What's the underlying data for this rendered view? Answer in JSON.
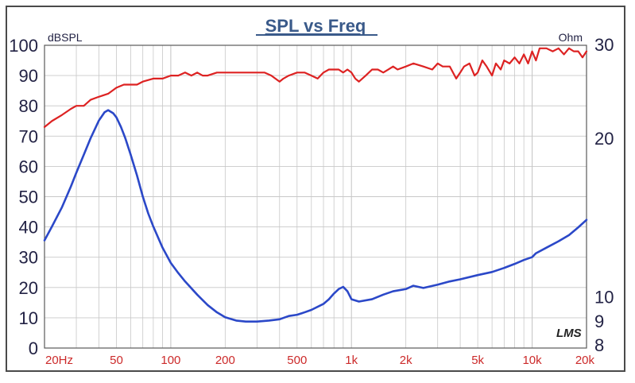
{
  "chart_data": {
    "type": "line",
    "title": "SPL vs Freq",
    "left_axis_label": "dBSPL",
    "right_axis_label": "Ohm",
    "watermark": "LMS",
    "xscale": "log",
    "xlim": [
      20,
      20000
    ],
    "ylim": [
      0,
      100
    ],
    "y2scale": "log",
    "y2lim": [
      8,
      30
    ],
    "grid": true,
    "colors": {
      "spl": "#dd2222",
      "impedance": "#2b48c8",
      "frame": "#5a5a5a",
      "grid": "#c8c8c8",
      "x_ticks": "#cc2a2a",
      "y_ticks": "#222244",
      "title": "#3a5a8a"
    },
    "x_tick_values": [
      20,
      50,
      100,
      200,
      500,
      1000,
      2000,
      5000,
      10000,
      20000
    ],
    "x_tick_labels": [
      "20Hz",
      "50",
      "100",
      "200",
      "500",
      "1k",
      "2k",
      "5k",
      "10k",
      "20k"
    ],
    "y_tick_values": [
      0,
      10,
      20,
      30,
      40,
      50,
      60,
      70,
      80,
      90,
      100
    ],
    "y_tick_labels": [
      "0",
      "10",
      "20",
      "30",
      "40",
      "50",
      "60",
      "70",
      "80",
      "90",
      "100"
    ],
    "y2_tick_values": [
      8,
      9,
      10,
      20,
      30
    ],
    "y2_tick_labels": [
      "8",
      "9",
      "10",
      "20",
      "30"
    ],
    "series": [
      {
        "axis": "left",
        "x": [
          20,
          22,
          25,
          28,
          30,
          33,
          36,
          40,
          45,
          50,
          55,
          60,
          65,
          70,
          80,
          90,
          100,
          110,
          120,
          130,
          140,
          150,
          160,
          180,
          200,
          220,
          250,
          280,
          300,
          330,
          360,
          400,
          420,
          450,
          500,
          550,
          600,
          650,
          700,
          750,
          800,
          850,
          900,
          950,
          1000,
          1050,
          1100,
          1200,
          1300,
          1400,
          1500,
          1600,
          1700,
          1800,
          2000,
          2200,
          2500,
          2800,
          3000,
          3200,
          3500,
          3800,
          4000,
          4200,
          4500,
          4800,
          5000,
          5300,
          5600,
          6000,
          6300,
          6700,
          7000,
          7500,
          8000,
          8500,
          9000,
          9500,
          10000,
          10500,
          11000,
          12000,
          13000,
          14000,
          15000,
          16000,
          17000,
          18000,
          19000,
          20000
        ],
        "y": [
          73,
          75,
          77,
          79,
          80,
          80,
          82,
          83,
          84,
          86,
          87,
          87,
          87,
          88,
          89,
          89,
          90,
          90,
          91,
          90,
          91,
          90,
          90,
          91,
          91,
          91,
          91,
          91,
          91,
          91,
          90,
          88,
          89,
          90,
          91,
          91,
          90,
          89,
          91,
          92,
          92,
          92,
          91,
          92,
          91,
          89,
          88,
          90,
          92,
          92,
          91,
          92,
          93,
          92,
          93,
          94,
          93,
          92,
          94,
          93,
          93,
          89,
          91,
          93,
          94,
          90,
          91,
          95,
          93,
          90,
          94,
          92,
          95,
          94,
          96,
          94,
          97,
          94,
          98,
          95,
          99,
          99,
          98,
          99,
          97,
          99,
          98,
          98,
          96,
          98
        ]
      },
      {
        "axis": "right",
        "x": [
          20,
          22,
          25,
          28,
          30,
          33,
          36,
          40,
          43,
          45,
          48,
          50,
          53,
          56,
          60,
          65,
          70,
          75,
          80,
          90,
          100,
          110,
          120,
          140,
          160,
          180,
          200,
          230,
          260,
          300,
          350,
          400,
          450,
          500,
          550,
          600,
          700,
          750,
          800,
          850,
          900,
          950,
          1000,
          1100,
          1300,
          1500,
          1700,
          2000,
          2200,
          2500,
          3000,
          3500,
          4000,
          5000,
          6000,
          7000,
          8000,
          9000,
          10000,
          10500,
          12000,
          14000,
          16000,
          18000,
          20000
        ],
        "y": [
          12.8,
          13.6,
          14.8,
          16.2,
          17.2,
          18.6,
          20.0,
          21.6,
          22.4,
          22.6,
          22.3,
          21.9,
          21.0,
          20.0,
          18.6,
          17.0,
          15.5,
          14.4,
          13.6,
          12.4,
          11.6,
          11.1,
          10.7,
          10.1,
          9.65,
          9.35,
          9.15,
          9.02,
          8.98,
          8.98,
          9.02,
          9.07,
          9.2,
          9.25,
          9.35,
          9.45,
          9.7,
          9.9,
          10.15,
          10.35,
          10.45,
          10.25,
          9.9,
          9.8,
          9.9,
          10.1,
          10.25,
          10.35,
          10.5,
          10.4,
          10.55,
          10.7,
          10.8,
          11.0,
          11.15,
          11.35,
          11.55,
          11.75,
          11.9,
          12.1,
          12.4,
          12.75,
          13.1,
          13.55,
          14.0
        ]
      }
    ]
  }
}
